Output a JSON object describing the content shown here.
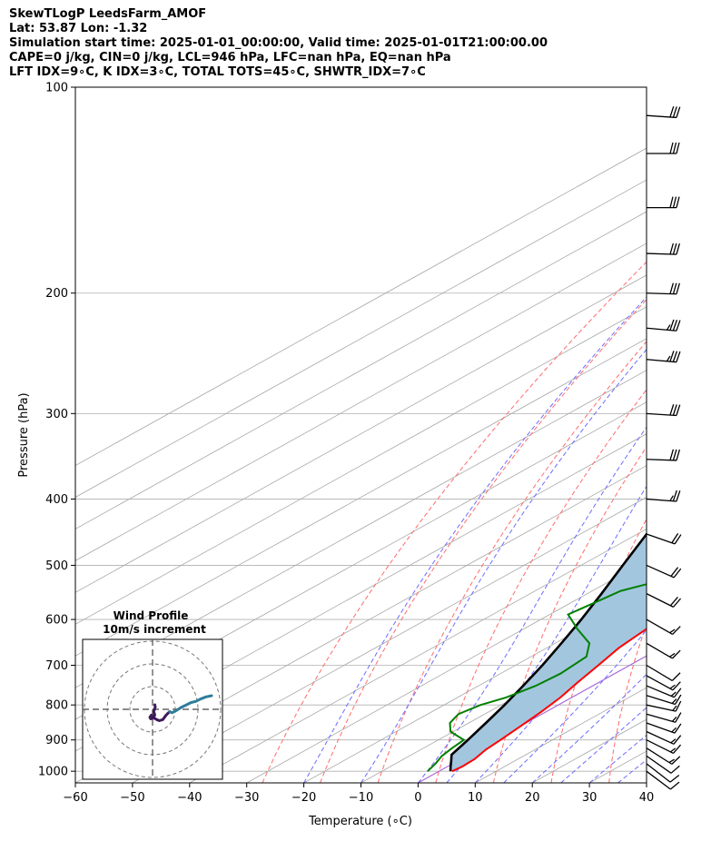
{
  "header": {
    "title": "SkewTLogP LeedsFarm_AMOF",
    "location": "Lat: 53.87   Lon: -1.32",
    "times": "Simulation start time: 2025-01-01_00:00:00, Valid time: 2025-01-01T21:00:00.00",
    "params": "CAPE=0 j/kg, CIN=0 j/kg, LCL=946 hPa, LFC=nan hPa, EQ=nan hPa",
    "indices": "LFT IDX=9∘C, K IDX=3∘C, TOTAL TOTS=45∘C, SHWTR_IDX=7∘C"
  },
  "colors": {
    "temperature": "#ff0000",
    "dewpoint": "#008000",
    "parcel": "#000000",
    "cape_fill": "#a3c6df",
    "dry_adiabat": "#ff6b6b",
    "moist_adiabat": "#6b6bff",
    "mixing_ratio": "#9a9a9a",
    "isotherm_zero": "#a86bd6",
    "hodo_low": "#3b1a5a",
    "hodo_high": "#2e7d9a"
  },
  "chart_data": [
    {
      "type": "line",
      "chart_kind": "skew-T log-p",
      "xlabel": "Temperature (∘C)",
      "ylabel": "Pressure (hPa)",
      "xlim": [
        -60,
        40
      ],
      "ylim": [
        1040,
        100
      ],
      "y_scale": "log",
      "x_ticks": [
        -60,
        -50,
        -40,
        -30,
        -20,
        -10,
        0,
        10,
        20,
        30,
        40
      ],
      "x_tick_labels": [
        "−60",
        "−50",
        "−40",
        "−30",
        "−20",
        "−10",
        "0",
        "10",
        "20",
        "30",
        "40"
      ],
      "y_ticks": [
        1000,
        900,
        800,
        700,
        600,
        500,
        400,
        300,
        200,
        100
      ],
      "y_tick_labels": [
        "1000",
        "900",
        "800",
        "700",
        "600",
        "500",
        "400",
        "300",
        "200",
        "100"
      ],
      "grid": true,
      "series": [
        {
          "key": "temperature",
          "points": [
            [
              1000,
              2.3
            ],
            [
              985,
              2.6
            ],
            [
              960,
              2.4
            ],
            [
              930,
              1.4
            ],
            [
              900,
              0.9
            ],
            [
              860,
              0.1
            ],
            [
              820,
              -0.8
            ],
            [
              780,
              -2.0
            ],
            [
              740,
              -3.8
            ],
            [
              700,
              -5.5
            ],
            [
              660,
              -7.4
            ],
            [
              620,
              -8.5
            ],
            [
              580,
              -10.0
            ],
            [
              540,
              -12.4
            ],
            [
              500,
              -14.8
            ],
            [
              470,
              -15.7
            ],
            [
              440,
              -15.2
            ],
            [
              400,
              -15.3
            ],
            [
              370,
              -16.5
            ],
            [
              340,
              -17.9
            ],
            [
              310,
              -18.2
            ],
            [
              280,
              -20.0
            ],
            [
              250,
              -23.0
            ],
            [
              220,
              -28.5
            ],
            [
              200,
              -33.5
            ],
            [
              180,
              -38.5
            ],
            [
              160,
              -42.5
            ],
            [
              140,
              -45.5
            ],
            [
              120,
              -48.5
            ],
            [
              100,
              -52.5
            ]
          ]
        },
        {
          "key": "dewpoint",
          "points": [
            [
              1000,
              -2.0
            ],
            [
              975,
              -3.0
            ],
            [
              950,
              -4.3
            ],
            [
              925,
              -5.0
            ],
            [
              900,
              -5.5
            ],
            [
              875,
              -10.5
            ],
            [
              850,
              -13.3
            ],
            [
              825,
              -14.6
            ],
            [
              800,
              -13.6
            ],
            [
              780,
              -11.5
            ],
            [
              750,
              -10.0
            ],
            [
              720,
              -9.5
            ],
            [
              680,
              -10.3
            ],
            [
              650,
              -14.0
            ],
            [
              620,
              -20.5
            ],
            [
              590,
              -26.8
            ],
            [
              570,
              -26.0
            ],
            [
              545,
              -25.0
            ],
            [
              520,
              -20.0
            ],
            [
              490,
              -19.5
            ],
            [
              460,
              -22.5
            ],
            [
              420,
              -28.3
            ],
            [
              390,
              -33.5
            ],
            [
              375,
              -31.3
            ],
            [
              350,
              -30.0
            ],
            [
              320,
              -29.5
            ],
            [
              290,
              -30.0
            ],
            [
              260,
              -31.5
            ],
            [
              240,
              -32.5
            ],
            [
              220,
              -34.8
            ],
            [
              200,
              -37.5
            ],
            [
              180,
              -42.5
            ],
            [
              165,
              -47.5
            ],
            [
              150,
              -49.0
            ],
            [
              130,
              -52.5
            ],
            [
              110,
              -55.5
            ],
            [
              100,
              -57.5
            ]
          ]
        },
        {
          "key": "parcel",
          "points": [
            [
              1000,
              2.0
            ],
            [
              985,
              0.6
            ],
            [
              965,
              -1.2
            ],
            [
              946,
              -3.0
            ],
            [
              900,
              -4.8
            ],
            [
              850,
              -7.0
            ],
            [
              800,
              -9.4
            ],
            [
              750,
              -12.2
            ],
            [
              700,
              -15.3
            ],
            [
              650,
              -18.9
            ],
            [
              600,
              -22.9
            ],
            [
              550,
              -27.5
            ],
            [
              500,
              -32.7
            ],
            [
              450,
              -38.4
            ],
            [
              400,
              -44.5
            ],
            [
              350,
              -51.0
            ],
            [
              300,
              -58.0
            ],
            [
              250,
              -66.0
            ],
            [
              200,
              -75.0
            ],
            [
              150,
              -86.0
            ],
            [
              100,
              -101.0
            ]
          ]
        }
      ]
    },
    {
      "type": "scatter",
      "chart_kind": "wind barbs",
      "units": "m/s",
      "barbs": [
        {
          "pressure": 1000,
          "u": -8,
          "v": 6
        },
        {
          "pressure": 975,
          "u": -9,
          "v": 7
        },
        {
          "pressure": 950,
          "u": -10,
          "v": 7
        },
        {
          "pressure": 925,
          "u": -11,
          "v": 7
        },
        {
          "pressure": 900,
          "u": -12,
          "v": 6
        },
        {
          "pressure": 875,
          "u": -13,
          "v": 6
        },
        {
          "pressure": 850,
          "u": -14,
          "v": 5
        },
        {
          "pressure": 825,
          "u": -14,
          "v": 4
        },
        {
          "pressure": 800,
          "u": -14,
          "v": 3
        },
        {
          "pressure": 775,
          "u": -13,
          "v": 4
        },
        {
          "pressure": 750,
          "u": -12,
          "v": 5
        },
        {
          "pressure": 725,
          "u": -11,
          "v": 6
        },
        {
          "pressure": 700,
          "u": -10,
          "v": 6
        },
        {
          "pressure": 650,
          "u": -12,
          "v": 7
        },
        {
          "pressure": 600,
          "u": -14,
          "v": 8
        },
        {
          "pressure": 550,
          "u": -16,
          "v": 8
        },
        {
          "pressure": 500,
          "u": -18,
          "v": 8
        },
        {
          "pressure": 450,
          "u": -20,
          "v": 7
        },
        {
          "pressure": 400,
          "u": -26,
          "v": 2
        },
        {
          "pressure": 350,
          "u": -28,
          "v": 1
        },
        {
          "pressure": 300,
          "u": -31,
          "v": 2
        },
        {
          "pressure": 250,
          "u": -33,
          "v": 3
        },
        {
          "pressure": 225,
          "u": -33,
          "v": 3
        },
        {
          "pressure": 200,
          "u": -32,
          "v": 1
        },
        {
          "pressure": 175,
          "u": -31,
          "v": 1
        },
        {
          "pressure": 150,
          "u": -30,
          "v": 0
        },
        {
          "pressure": 125,
          "u": -29,
          "v": 0
        },
        {
          "pressure": 110,
          "u": -29,
          "v": 2
        }
      ]
    },
    {
      "type": "line",
      "chart_kind": "hodograph",
      "title": "Wind Profile",
      "subtitle": "10m/s increment",
      "rings": [
        10,
        20,
        30
      ],
      "series": [
        {
          "key": "hodo_low",
          "points": [
            [
              1.0,
              2.0
            ],
            [
              1.2,
              1.0
            ],
            [
              0.5,
              -1.0
            ],
            [
              1.0,
              -2.5
            ],
            [
              0.3,
              -3.5
            ],
            [
              -0.5,
              -2.5
            ],
            [
              -1.2,
              -3.5
            ],
            [
              -0.8,
              -4.2
            ],
            [
              0.2,
              -3.8
            ],
            [
              1.0,
              -4.0
            ],
            [
              1.8,
              -4.5
            ],
            [
              3.0,
              -5.0
            ],
            [
              4.5,
              -4.5
            ],
            [
              6.0,
              -2.5
            ],
            [
              7.5,
              -1.0
            ]
          ]
        },
        {
          "key": "hodo_high",
          "points": [
            [
              7.5,
              -1.0
            ],
            [
              8.5,
              -1.5
            ],
            [
              10.5,
              -0.5
            ],
            [
              12.5,
              0.8
            ],
            [
              15.0,
              2.0
            ],
            [
              17.0,
              3.0
            ],
            [
              19.0,
              3.5
            ],
            [
              21.0,
              4.5
            ],
            [
              23.5,
              5.5
            ],
            [
              26.0,
              6.0
            ]
          ]
        }
      ]
    }
  ]
}
